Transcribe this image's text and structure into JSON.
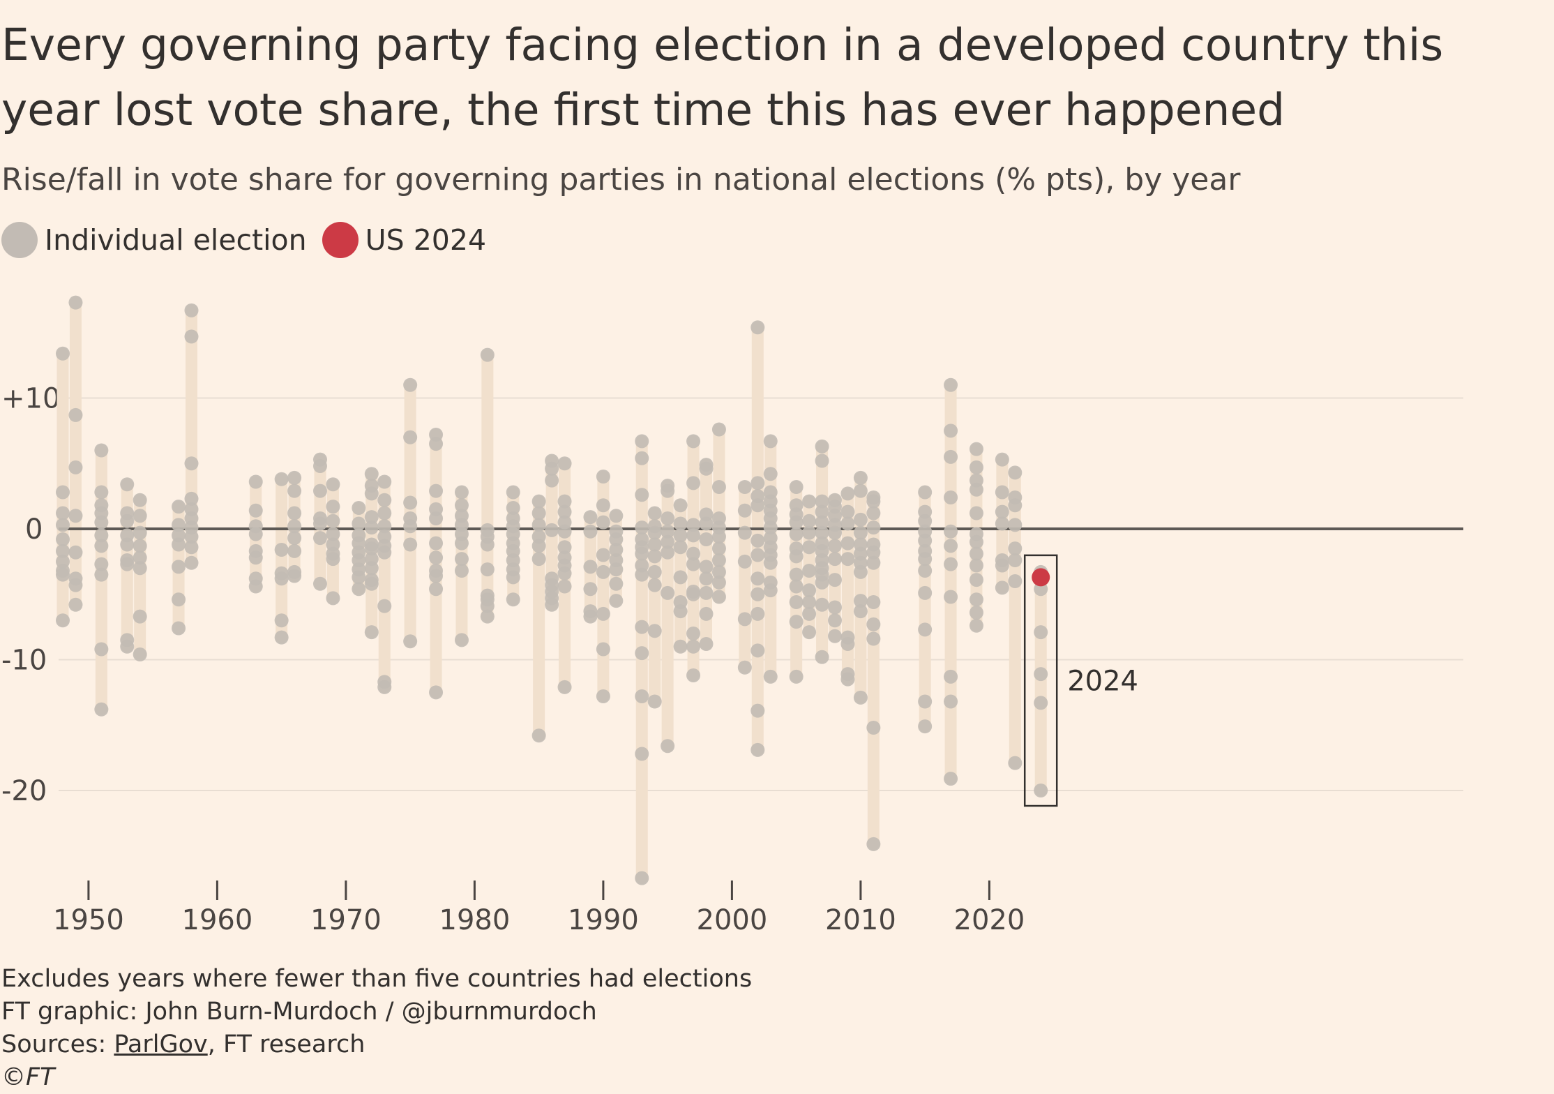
{
  "header": {
    "title": "Every governing party facing election in a developed country this year lost vote share, the first time this has ever happened",
    "subtitle": "Rise/fall in vote share for governing parties in national elections (% pts), by year"
  },
  "legend": {
    "items": [
      {
        "label": "Individual election",
        "color": "#c2bbb4"
      },
      {
        "label": "US 2024",
        "color": "#cc3a45"
      }
    ]
  },
  "footer": {
    "note": "Excludes years where fewer than five countries had elections",
    "credit": "FT graphic: John Burn-Murdoch / @jburnmurdoch",
    "sources_prefix": "Sources: ",
    "sources_link": "ParlGov",
    "sources_suffix": ", FT research",
    "copyright": "©FT"
  },
  "chart_data": {
    "type": "scatter",
    "title": "Every governing party facing election in a developed country this year lost vote share, the first time this has ever happened",
    "subtitle": "Rise/fall in vote share for governing parties in national elections (% pts), by year",
    "xlabel": "",
    "ylabel": "",
    "xlim": [
      1948,
      2024
    ],
    "ylim": [
      -27,
      17
    ],
    "x_ticks": [
      1950,
      1960,
      1970,
      1980,
      1990,
      2000,
      2010,
      2020
    ],
    "y_ticks": [
      {
        "value": 10,
        "label": "+10"
      },
      {
        "value": -10,
        "label": "-10"
      },
      {
        "value": -20,
        "label": "-20"
      }
    ],
    "zero_line_label": "0",
    "grid": true,
    "highlight_label": "2024",
    "highlight_year": 2024,
    "colors": {
      "dot": "#c2bbb4",
      "range_bar": "#f1e0cd",
      "highlight": "#cc3a45",
      "zero_line": "#5d5955",
      "grid": "#e8ddd2"
    },
    "series": [
      {
        "name": "Individual election",
        "points": [
          {
            "x": 1948,
            "values": [
              13.4,
              2.8,
              1.2,
              0.3,
              -0.8,
              -1.7,
              -2.5,
              -3.2,
              -3.5,
              -7
            ]
          },
          {
            "x": 1949,
            "values": [
              17.3,
              8.7,
              4.7,
              1.0,
              -1.8,
              -3.8,
              -4.3,
              -5.8
            ]
          },
          {
            "x": 1951,
            "values": [
              6,
              2.8,
              1.8,
              1.2,
              0.5,
              -0.5,
              -1.3,
              -2.7,
              -3.5,
              -9.2,
              -13.8
            ]
          },
          {
            "x": 1953,
            "values": [
              3.4,
              1.2,
              0.6,
              -0.5,
              -1.2,
              -2.4,
              -2.7,
              -8.5,
              -9
            ]
          },
          {
            "x": 1954,
            "values": [
              2.2,
              1.0,
              -0.3,
              -1.3,
              -2.2,
              -3.0,
              -6.7,
              -9.6
            ]
          },
          {
            "x": 1957,
            "values": [
              1.7,
              0.3,
              -0.5,
              -1.2,
              -2.9,
              -5.4,
              -7.6
            ]
          },
          {
            "x": 1958,
            "values": [
              16.7,
              14.7,
              5.0,
              2.3,
              1.5,
              0.8,
              0.1,
              -0.6,
              -1.4,
              -2.6
            ]
          },
          {
            "x": 1963,
            "values": [
              3.6,
              1.4,
              0.2,
              -0.4,
              -1.7,
              -2.2,
              -3.8,
              -4.4
            ]
          },
          {
            "x": 1965,
            "values": [
              3.8,
              -1.6,
              -3.4,
              -3.8,
              -7.0,
              -8.3
            ]
          },
          {
            "x": 1966,
            "values": [
              3.9,
              2.9,
              1.2,
              0.2,
              -0.7,
              -1.7,
              -3.3,
              -3.6
            ]
          },
          {
            "x": 1968,
            "values": [
              5.3,
              4.8,
              2.9,
              0.8,
              0.4,
              -0.7,
              -4.2
            ]
          },
          {
            "x": 1969,
            "values": [
              3.4,
              1.7,
              0.6,
              -0.4,
              -1.2,
              -1.9,
              -2.3,
              -5.3
            ]
          },
          {
            "x": 1971,
            "values": [
              1.6,
              0.4,
              -0.5,
              -1.1,
              -1.8,
              -2.4,
              -3.1,
              -3.7,
              -4.6
            ]
          },
          {
            "x": 1972,
            "values": [
              4.2,
              3.3,
              2.7,
              0.9,
              0.1,
              -1.2,
              -1.5,
              -2.3,
              -3.0,
              -3.9,
              -4.2,
              -7.9
            ]
          },
          {
            "x": 1973,
            "values": [
              3.6,
              2.2,
              1.2,
              0.2,
              -0.6,
              -1.3,
              -1.8,
              -5.9,
              -11.7,
              -12.1
            ]
          },
          {
            "x": 1975,
            "values": [
              11,
              7,
              2,
              0.8,
              0.2,
              -1.2,
              -8.6
            ]
          },
          {
            "x": 1977,
            "values": [
              7.2,
              6.5,
              2.9,
              1.5,
              0.8,
              -1.1,
              -2.2,
              -3.2,
              -3.6,
              -4.6,
              -12.5
            ]
          },
          {
            "x": 1979,
            "values": [
              2.8,
              1.8,
              1.0,
              0.3,
              -0.4,
              -1.1,
              -2.3,
              -3.2,
              -8.5
            ]
          },
          {
            "x": 1981,
            "values": [
              13.3,
              -0.1,
              -0.6,
              -1.2,
              -3.1,
              -5.1,
              -5.4,
              -5.9,
              -6.7
            ]
          },
          {
            "x": 1983,
            "values": [
              2.8,
              1.6,
              0.8,
              0.2,
              -0.4,
              -1.1,
              -1.7,
              -2.4,
              -3.1,
              -3.7,
              -5.4
            ]
          },
          {
            "x": 1985,
            "values": [
              2.1,
              1.2,
              0.3,
              -0.6,
              -1.3,
              -2.3,
              -15.8
            ]
          },
          {
            "x": 1986,
            "values": [
              5.2,
              4.6,
              3.7,
              -0.1,
              -3.8,
              -4.3,
              -4.8,
              -5.3,
              -5.8
            ]
          },
          {
            "x": 1987,
            "values": [
              5.0,
              2.1,
              1.3,
              0.5,
              -0.2,
              -1.4,
              -2.2,
              -2.8,
              -3.4,
              -4.4,
              -12.1
            ]
          },
          {
            "x": 1989,
            "values": [
              0.9,
              -0.2,
              -2.9,
              -4.6,
              -6.3,
              -6.7
            ]
          },
          {
            "x": 1990,
            "values": [
              4.0,
              1.8,
              0.5,
              -2.0,
              -3.3,
              -6.5,
              -9.2,
              -12.8
            ]
          },
          {
            "x": 1991,
            "values": [
              1,
              -0.2,
              -0.8,
              -1.6,
              -2.4,
              -3.1,
              -4.2,
              -5.5
            ]
          },
          {
            "x": 1993,
            "values": [
              6.7,
              5.4,
              2.6,
              0.1,
              -0.8,
              -1.4,
              -1.9,
              -2.8,
              -3.5,
              -7.5,
              -9.5,
              -12.8,
              -17.2,
              -26.7
            ]
          },
          {
            "x": 1994,
            "values": [
              1.2,
              0.2,
              -0.3,
              -1.2,
              -2.1,
              -3.3,
              -4.3,
              -7.8,
              -13.2
            ]
          },
          {
            "x": 1995,
            "values": [
              3.3,
              2.9,
              0.8,
              -0.2,
              -1.0,
              -1.8,
              -4.9,
              -16.6
            ]
          },
          {
            "x": 1996,
            "values": [
              1.8,
              0.4,
              -0.5,
              -1.4,
              -3.7,
              -5.6,
              -6.3,
              -9.0
            ]
          },
          {
            "x": 1997,
            "values": [
              6.7,
              3.5,
              0.3,
              -0.5,
              -1.9,
              -2.7,
              -4.8,
              -5.0,
              -8.0,
              -9.0,
              -11.2
            ]
          },
          {
            "x": 1998,
            "values": [
              4.9,
              4.6,
              1.1,
              0.4,
              -0.8,
              -2.9,
              -3.8,
              -4.9,
              -6.5,
              -8.8
            ]
          },
          {
            "x": 1999,
            "values": [
              7.6,
              3.2,
              0.8,
              0.1,
              -0.6,
              -1.5,
              -2.4,
              -3.3,
              -4.1,
              -5.2
            ]
          },
          {
            "x": 2001,
            "values": [
              3.2,
              1.4,
              -0.3,
              -2.5,
              -6.9,
              -10.6
            ]
          },
          {
            "x": 2002,
            "values": [
              15.4,
              3.5,
              2.5,
              1.8,
              -0.9,
              -2.0,
              -3.8,
              -5.0,
              -6.5,
              -9.3,
              -13.9,
              -16.9
            ]
          },
          {
            "x": 2003,
            "values": [
              6.7,
              4.2,
              2.8,
              2.1,
              1.4,
              0.8,
              0.1,
              -0.7,
              -1.4,
              -2.0,
              -2.6,
              -4.1,
              -4.7,
              -11.3
            ]
          },
          {
            "x": 2005,
            "values": [
              3.2,
              1.8,
              1.1,
              0.5,
              -0.4,
              -1.5,
              -2.1,
              -3.5,
              -4.4,
              -5.6,
              -7.1,
              -11.3
            ]
          },
          {
            "x": 2006,
            "values": [
              2.1,
              0.6,
              -0.3,
              -1.4,
              -3.2,
              -4.7,
              -5.6,
              -6.5,
              -7.9
            ]
          },
          {
            "x": 2007,
            "values": [
              6.3,
              5.2,
              2.1,
              1.3,
              0.5,
              -0.3,
              -1.1,
              -1.7,
              -2.4,
              -3.0,
              -3.5,
              -4.1,
              -5.8,
              -9.8
            ]
          },
          {
            "x": 2008,
            "values": [
              2.2,
              1.7,
              1.0,
              0.3,
              -0.3,
              -1.3,
              -2.3,
              -3.9,
              -6.0,
              -7.0,
              -8.2
            ]
          },
          {
            "x": 2009,
            "values": [
              2.7,
              1.3,
              0.4,
              -1.1,
              -2.3,
              -8.3,
              -8.8,
              -11.1,
              -11.5
            ]
          },
          {
            "x": 2010,
            "values": [
              3.9,
              2.9,
              0.7,
              -0.3,
              -1.2,
              -1.9,
              -2.6,
              -3.3,
              -5.5,
              -6.3,
              -12.9
            ]
          },
          {
            "x": 2011,
            "values": [
              2.4,
              2.1,
              1.2,
              0.1,
              -1.2,
              -1.8,
              -2.6,
              -5.6,
              -7.3,
              -8.4,
              -15.2,
              -24.1
            ]
          },
          {
            "x": 2015,
            "values": [
              2.8,
              1.3,
              0.6,
              -0.2,
              -0.9,
              -1.7,
              -2.3,
              -3.2,
              -4.9,
              -7.7,
              -13.2,
              -15.1
            ]
          },
          {
            "x": 2017,
            "values": [
              11,
              7.5,
              5.5,
              2.4,
              -0.2,
              -1.3,
              -2.7,
              -5.2,
              -11.3,
              -13.2,
              -19.1
            ]
          },
          {
            "x": 2019,
            "values": [
              6.1,
              4.7,
              3.7,
              3.0,
              1.2,
              -0.4,
              -1.0,
              -1.9,
              -2.8,
              -3.9,
              -5.4,
              -6.4,
              -7.4
            ]
          },
          {
            "x": 2021,
            "values": [
              5.3,
              2.8,
              1.3,
              0.4,
              -2.4,
              -2.8,
              -4.5
            ]
          },
          {
            "x": 2022,
            "values": [
              4.3,
              2.4,
              1.8,
              0.3,
              -1.5,
              -2.4,
              -4.0,
              -17.9
            ]
          },
          {
            "x": 2024,
            "values": [
              -3.3,
              -4.6,
              -7.9,
              -11.1,
              -13.3,
              -20.0
            ]
          }
        ]
      },
      {
        "name": "US 2024",
        "points": [
          {
            "x": 2024,
            "y": -3.7
          }
        ]
      }
    ]
  }
}
